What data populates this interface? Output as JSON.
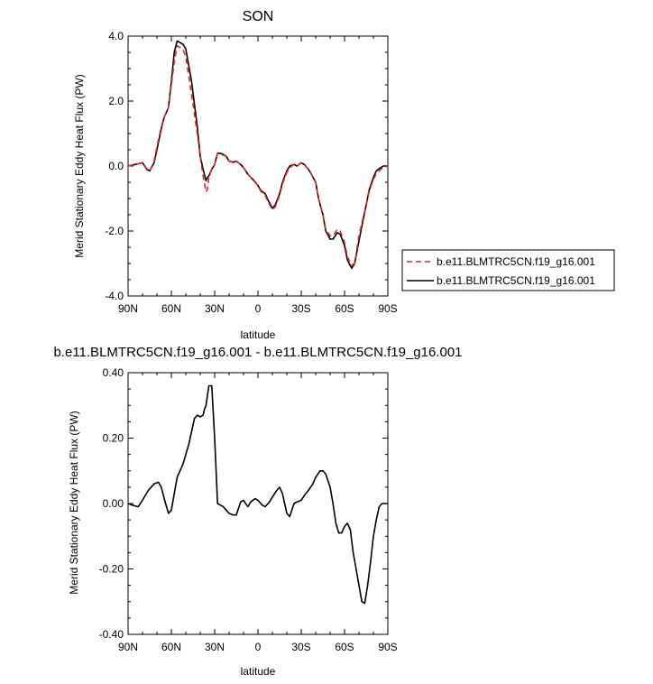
{
  "chart_data": [
    {
      "type": "line",
      "title": "SON",
      "xlabel": "latitude",
      "ylabel": "Merid Stationary Eddy Heat Flux (PW)",
      "xlim": [
        90,
        -90
      ],
      "ylim": [
        -4.0,
        4.0
      ],
      "x_ticks": [
        90,
        60,
        30,
        0,
        -30,
        -60,
        -90
      ],
      "x_tick_labels": [
        "90N",
        "60N",
        "30N",
        "0",
        "30S",
        "60S",
        "90S"
      ],
      "y_ticks": [
        -4.0,
        -2.0,
        0.0,
        2.0,
        4.0
      ],
      "y_tick_labels": [
        "-4.0",
        "-2.0",
        "0.0",
        "2.0",
        "4.0"
      ],
      "grid": false,
      "legend_position": "right",
      "series": [
        {
          "name": "b.e11.BLMTRC5CN.f19_g16.001",
          "color": "#e8231f",
          "dash": "dashed",
          "x": [
            90,
            85,
            80,
            77,
            75,
            72,
            70,
            67,
            65,
            62,
            60,
            58,
            56,
            54,
            52,
            50,
            48,
            46,
            44,
            42,
            40,
            38,
            36,
            35,
            34,
            32,
            30,
            28,
            25,
            22,
            20,
            17,
            15,
            12,
            10,
            7,
            5,
            2,
            0,
            -2,
            -5,
            -7,
            -10,
            -12,
            -15,
            -17,
            -20,
            -22,
            -25,
            -27,
            -30,
            -32,
            -35,
            -37,
            -40,
            -42,
            -45,
            -47,
            -50,
            -52,
            -55,
            -57,
            -60,
            -62,
            -65,
            -67,
            -70,
            -72,
            -75,
            -77,
            -80,
            -82,
            -85,
            -87,
            -90
          ],
          "y": [
            0.0,
            0.05,
            0.1,
            -0.12,
            -0.15,
            0.15,
            0.6,
            1.2,
            1.5,
            1.8,
            2.5,
            3.2,
            3.7,
            3.65,
            3.6,
            3.35,
            2.8,
            2.2,
            1.6,
            1.0,
            0.3,
            -0.3,
            -0.8,
            -0.7,
            -0.35,
            -0.1,
            0.05,
            0.4,
            0.35,
            0.3,
            0.15,
            0.1,
            0.15,
            0.05,
            -0.05,
            -0.25,
            -0.35,
            -0.5,
            -0.6,
            -0.78,
            -0.9,
            -1.1,
            -1.35,
            -1.25,
            -0.9,
            -0.55,
            -0.2,
            -0.05,
            0.05,
            0.0,
            0.1,
            0.05,
            -0.1,
            -0.25,
            -0.5,
            -1.0,
            -1.5,
            -1.95,
            -2.15,
            -2.15,
            -1.95,
            -2.0,
            -2.35,
            -2.8,
            -3.05,
            -3.0,
            -2.15,
            -1.75,
            -1.2,
            -0.8,
            -0.4,
            -0.25,
            -0.1,
            -0.05,
            0.0
          ]
        },
        {
          "name": "b.e11.BLMTRC5CN.f19_g16.001",
          "color": "#000000",
          "dash": "solid",
          "x": [
            90,
            85,
            80,
            77,
            75,
            72,
            70,
            67,
            65,
            62,
            60,
            58,
            56,
            54,
            52,
            50,
            48,
            46,
            44,
            42,
            40,
            38,
            36,
            35,
            34,
            32,
            30,
            28,
            25,
            22,
            20,
            17,
            15,
            12,
            10,
            7,
            5,
            2,
            0,
            -2,
            -5,
            -7,
            -10,
            -12,
            -15,
            -17,
            -20,
            -22,
            -25,
            -27,
            -30,
            -32,
            -35,
            -37,
            -40,
            -42,
            -45,
            -47,
            -50,
            -52,
            -55,
            -57,
            -60,
            -62,
            -65,
            -67,
            -70,
            -72,
            -75,
            -77,
            -80,
            -82,
            -85,
            -87,
            -90
          ],
          "y": [
            0.0,
            0.05,
            0.1,
            -0.1,
            -0.15,
            0.1,
            0.5,
            1.15,
            1.5,
            1.8,
            2.6,
            3.5,
            3.85,
            3.8,
            3.75,
            3.6,
            3.1,
            2.6,
            1.9,
            1.2,
            0.3,
            -0.1,
            -0.45,
            -0.35,
            -0.3,
            -0.1,
            0.05,
            0.4,
            0.38,
            0.3,
            0.15,
            0.12,
            0.15,
            0.05,
            -0.05,
            -0.25,
            -0.35,
            -0.48,
            -0.6,
            -0.75,
            -0.85,
            -1.05,
            -1.3,
            -1.2,
            -0.85,
            -0.5,
            -0.15,
            0.0,
            0.05,
            0.0,
            0.1,
            0.05,
            -0.1,
            -0.25,
            -0.5,
            -1.0,
            -1.5,
            -2.0,
            -2.25,
            -2.25,
            -2.05,
            -2.1,
            -2.45,
            -2.9,
            -3.15,
            -3.0,
            -2.3,
            -1.85,
            -1.2,
            -0.75,
            -0.35,
            -0.15,
            -0.05,
            0.0,
            0.0
          ]
        }
      ]
    },
    {
      "type": "line",
      "title": "b.e11.BLMTRC5CN.f19_g16.001 - b.e11.BLMTRC5CN.f19_g16.001",
      "xlabel": "latitude",
      "ylabel": "Merid Stationary Eddy Heat Flux (PW)",
      "xlim": [
        90,
        -90
      ],
      "ylim": [
        -0.4,
        0.4
      ],
      "x_ticks": [
        90,
        60,
        30,
        0,
        -30,
        -60,
        -90
      ],
      "x_tick_labels": [
        "90N",
        "60N",
        "30N",
        "0",
        "30S",
        "60S",
        "90S"
      ],
      "y_ticks": [
        -0.4,
        -0.2,
        0.0,
        0.2,
        0.4
      ],
      "y_tick_labels": [
        "-0.40",
        "-0.20",
        "0.00",
        "0.20",
        "0.40"
      ],
      "grid": false,
      "series": [
        {
          "color": "#000000",
          "dash": "solid",
          "x": [
            90,
            87,
            83,
            80,
            76,
            72,
            69,
            67,
            64,
            62,
            60,
            56,
            52,
            48,
            46,
            44,
            42,
            40,
            38,
            37,
            36,
            34,
            32,
            30,
            28,
            26,
            24,
            22,
            20,
            17,
            15,
            12,
            10,
            7,
            5,
            2,
            0,
            -3,
            -5,
            -8,
            -10,
            -13,
            -15,
            -17,
            -20,
            -22,
            -25,
            -27,
            -30,
            -33,
            -35,
            -38,
            -40,
            -43,
            -45,
            -47,
            -50,
            -52,
            -54,
            -56,
            -58,
            -60,
            -62,
            -64,
            -66,
            -68,
            -70,
            -72,
            -74,
            -76,
            -78,
            -80,
            -82,
            -84,
            -86,
            -88,
            -90
          ],
          "y": [
            0.0,
            -0.005,
            -0.01,
            0.01,
            0.04,
            0.06,
            0.065,
            0.05,
            0.0,
            -0.03,
            -0.02,
            0.08,
            0.12,
            0.18,
            0.22,
            0.26,
            0.27,
            0.265,
            0.27,
            0.29,
            0.3,
            0.36,
            0.36,
            0.2,
            0.0,
            -0.005,
            -0.01,
            -0.02,
            -0.03,
            -0.035,
            -0.035,
            0.005,
            0.01,
            -0.01,
            0.005,
            0.015,
            0.01,
            -0.005,
            -0.01,
            0.005,
            0.02,
            0.04,
            0.05,
            0.03,
            -0.03,
            -0.04,
            0.0,
            0.005,
            0.01,
            0.03,
            0.04,
            0.06,
            0.08,
            0.1,
            0.1,
            0.09,
            0.05,
            0.0,
            -0.06,
            -0.09,
            -0.09,
            -0.07,
            -0.06,
            -0.08,
            -0.15,
            -0.2,
            -0.25,
            -0.3,
            -0.305,
            -0.25,
            -0.18,
            -0.1,
            -0.05,
            -0.01,
            0.0,
            0.0,
            0.0
          ]
        }
      ]
    }
  ]
}
